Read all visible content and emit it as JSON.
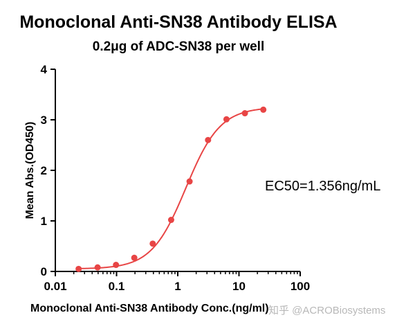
{
  "chart_data": {
    "type": "scatter",
    "title": "Monoclonal Anti-SN38 Antibody ELISA",
    "subtitle": "0.2μg of ADC-SN38 per well",
    "xlabel": "Monoclonal Anti-SN38 Antibody Conc.(ng/ml)",
    "ylabel": "Mean Abs.(OD450)",
    "xscale": "log",
    "xlim": [
      0.01,
      100
    ],
    "ylim": [
      0,
      4
    ],
    "xticks": [
      0.01,
      0.1,
      1,
      10,
      100
    ],
    "xtick_labels": [
      "0.01",
      "0.1",
      "1",
      "10",
      "100"
    ],
    "yticks": [
      0,
      1,
      2,
      3,
      4
    ],
    "ytick_labels": [
      "0",
      "1",
      "2",
      "3",
      "4"
    ],
    "grid": false,
    "color": "#e84545",
    "series": [
      {
        "x": [
          0.024,
          0.049,
          0.098,
          0.195,
          0.39,
          0.78,
          1.56,
          3.125,
          6.25,
          12.5,
          25
        ],
        "y": [
          0.05,
          0.08,
          0.13,
          0.27,
          0.55,
          1.02,
          1.78,
          2.6,
          3.01,
          3.13,
          3.2
        ],
        "fit": {
          "bottom": 0.05,
          "top": 3.25,
          "ec50": 1.356,
          "hill": 1.55
        }
      }
    ],
    "annotation": "EC50=1.356ng/mL",
    "watermark": "知乎 @ACROBiosystems"
  }
}
